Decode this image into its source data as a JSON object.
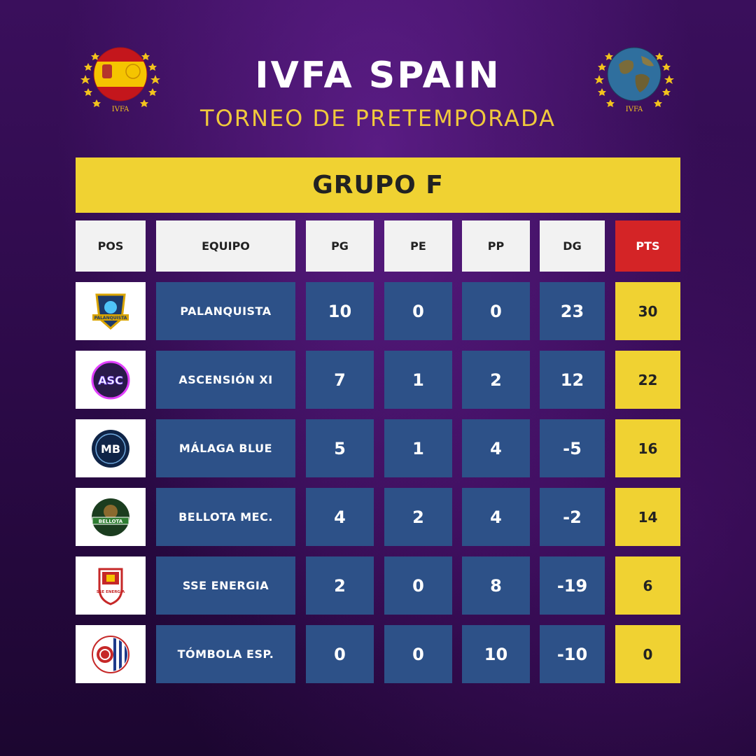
{
  "title": "IVFA SPAIN",
  "subtitle": "TORNEO DE PRETEMPORADA",
  "emblems": {
    "left": {
      "icon": "spain-ball-emblem-icon",
      "text": "IVFA"
    },
    "right": {
      "icon": "globe-ball-emblem-icon",
      "text": "IVFA"
    }
  },
  "group": "GRUPO F",
  "headers": [
    "POS",
    "EQUIPO",
    "PG",
    "PE",
    "PP",
    "DG",
    "PTS"
  ],
  "rows": [
    {
      "logo": "palanquista-logo-icon",
      "logo_text": "PALANQUISTA",
      "team": "PALANQUISTA",
      "pg": "10",
      "pe": "0",
      "pp": "0",
      "dg": "23",
      "pts": "30"
    },
    {
      "logo": "ascension-logo-icon",
      "logo_text": "ASC",
      "team": "ASCENSIÓN XI",
      "pg": "7",
      "pe": "1",
      "pp": "2",
      "dg": "12",
      "pts": "22"
    },
    {
      "logo": "malaga-blue-logo-icon",
      "logo_text": "MB",
      "team": "MÁLAGA BLUE",
      "pg": "5",
      "pe": "1",
      "pp": "4",
      "dg": "-5",
      "pts": "16"
    },
    {
      "logo": "bellota-logo-icon",
      "logo_text": "BELLOTA",
      "team": "BELLOTA MEC.",
      "pg": "4",
      "pe": "2",
      "pp": "4",
      "dg": "-2",
      "pts": "14"
    },
    {
      "logo": "sse-energia-logo-icon",
      "logo_text": "SSE ENERGIA",
      "team": "SSE ENERGIA",
      "pg": "2",
      "pe": "0",
      "pp": "8",
      "dg": "-19",
      "pts": "6"
    },
    {
      "logo": "tombola-logo-icon",
      "logo_text": "",
      "team": "TÓMBOLA ESP.",
      "pg": "0",
      "pe": "0",
      "pp": "10",
      "dg": "-10",
      "pts": "0"
    }
  ],
  "colors": {
    "background": "#2c0a48",
    "banner": "#f0d232",
    "row": "#2d5188",
    "pts_header": "#d42426",
    "subtitle": "#f0c93c"
  }
}
